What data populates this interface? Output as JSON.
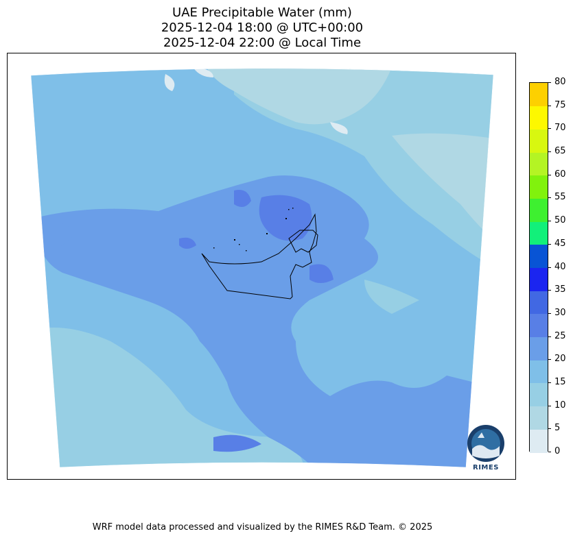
{
  "title": {
    "line1": "UAE Precipitable Water (mm)",
    "line2": "2025-12-04 18:00 @ UTC+00:00",
    "line3": "2025-12-04 22:00 @ Local Time"
  },
  "map": {
    "region": "UAE",
    "variable": "Precipitable Water",
    "unit": "mm"
  },
  "colorbar": {
    "ticks": [
      "0",
      "5",
      "10",
      "15",
      "20",
      "25",
      "30",
      "35",
      "40",
      "45",
      "50",
      "55",
      "60",
      "65",
      "70",
      "75",
      "80"
    ],
    "colors": [
      "#deebf2",
      "#b0d8e4",
      "#97cfe4",
      "#7fbfe8",
      "#6a9ee8",
      "#587fe6",
      "#4168e3",
      "#1b25f0",
      "#0854d5",
      "#12f07a",
      "#3ef030",
      "#81f20d",
      "#b4f424",
      "#d8f710",
      "#fdf800",
      "#fdd000"
    ]
  },
  "logo": {
    "text": "RIMES"
  },
  "footer": "WRF model data processed and visualized by the RIMES R&D Team. © 2025"
}
